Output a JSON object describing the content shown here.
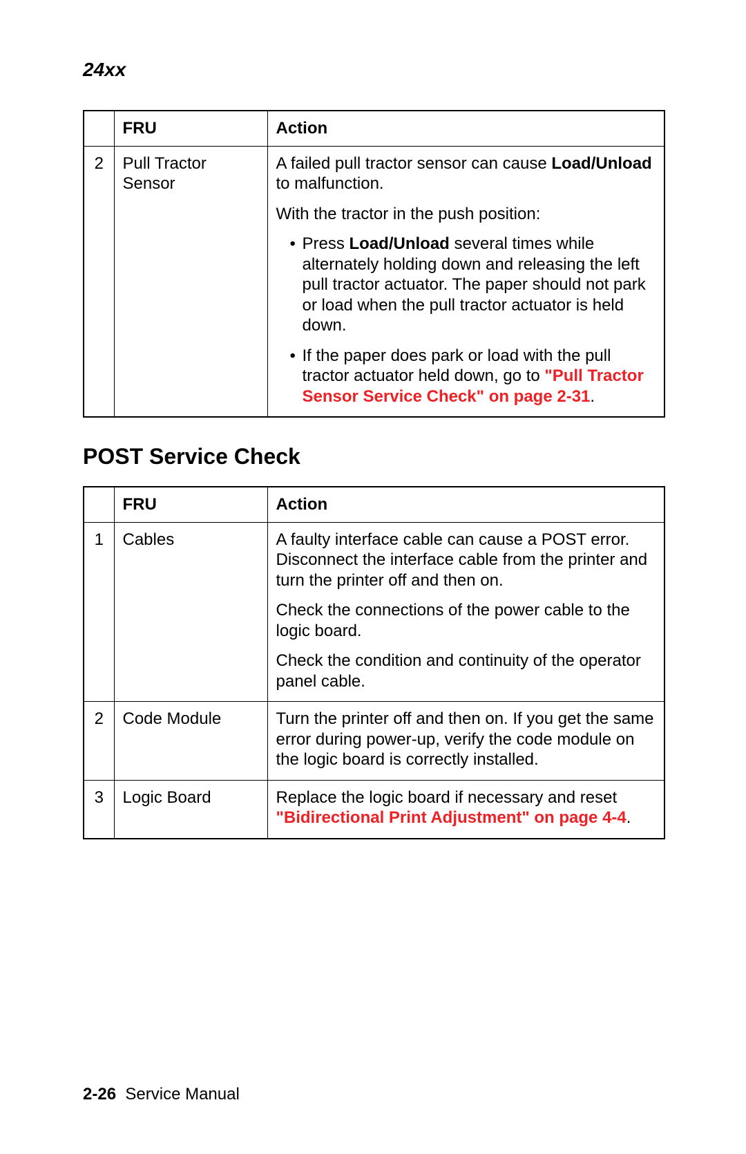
{
  "header": {
    "model": "24xx"
  },
  "colors": {
    "xref": "#ec2227",
    "text": "#000000",
    "background": "#ffffff"
  },
  "table1": {
    "columns": {
      "num": "",
      "fru": "FRU",
      "action": "Action"
    },
    "row": {
      "num": "2",
      "fru": "Pull Tractor Sensor",
      "p1_a": "A failed pull tractor sensor can cause ",
      "p1_bold": "Load/Unload",
      "p1_b": " to malfunction.",
      "p2": "With the tractor in the push position:",
      "b1_a": "Press ",
      "b1_bold": "Load/Unload",
      "b1_b": " several times while alternately holding down and releasing the left pull tractor actuator. The paper should not park or load when the pull tractor actuator is held down.",
      "b2_a": "If the paper does park or load with the pull tractor actuator held down, go to ",
      "b2_xref": "\"Pull Tractor Sensor Service Check\" on page 2-31",
      "b2_b": "."
    }
  },
  "section_heading": "POST Service Check",
  "table2": {
    "columns": {
      "num": "",
      "fru": "FRU",
      "action": "Action"
    },
    "rows": [
      {
        "num": "1",
        "fru": "Cables",
        "p1": "A faulty interface cable can cause a POST error. Disconnect the interface cable from the printer and turn the printer off and then on.",
        "p2": "Check the connections of the power cable to the logic board.",
        "p3": "Check the condition and continuity of the operator panel cable."
      },
      {
        "num": "2",
        "fru": "Code Module",
        "p1": "Turn the printer off and then on. If you get the same error during power-up, verify the code module on the logic board is correctly installed."
      },
      {
        "num": "3",
        "fru": "Logic Board",
        "p1_a": "Replace the logic board if necessary and reset ",
        "p1_xref": "\"Bidirectional Print Adjustment\" on page 4-4",
        "p1_b": "."
      }
    ]
  },
  "footer": {
    "page": "2-26",
    "label": "Service Manual"
  }
}
